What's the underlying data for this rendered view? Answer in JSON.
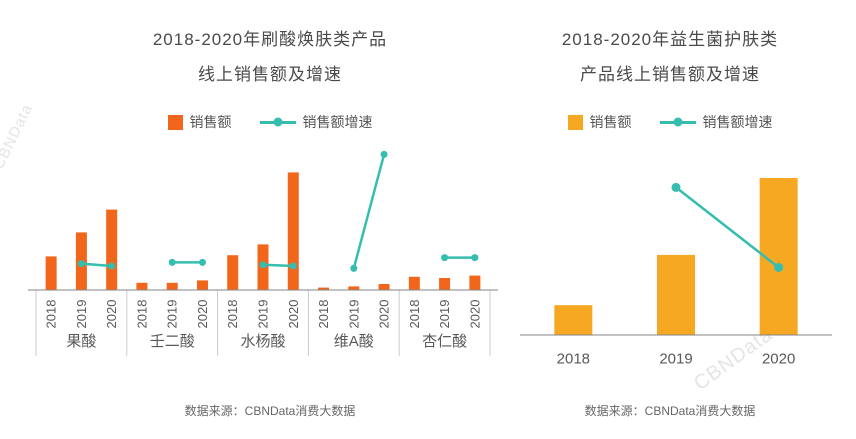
{
  "watermark": "CBNData",
  "accent_colors": {
    "acid_bar": "#F2661B",
    "probiotic_bar": "#F7A823",
    "growth_line": "#35BDAE"
  },
  "chart_data": [
    {
      "type": "bar+line",
      "title": "2018-2020年刷酸焕肤类产品线上销售额及增速",
      "title_lines": [
        "2018-2020年刷酸焕肤类产品",
        "线上销售额及增速"
      ],
      "groups": [
        "果酸",
        "壬二酸",
        "水杨酸",
        "维A酸",
        "杏仁酸"
      ],
      "years": [
        "2018",
        "2019",
        "2020"
      ],
      "bar_series": {
        "name": "销售额",
        "color": "#F2661B",
        "values": [
          [
            28,
            48,
            67
          ],
          [
            6,
            6,
            8
          ],
          [
            29,
            38,
            98
          ],
          [
            2,
            3,
            5
          ],
          [
            11,
            10,
            12
          ]
        ]
      },
      "line_series": {
        "name": "销售额增速",
        "color": "#35BDAE",
        "values": [
          [
            null,
            22,
            20
          ],
          [
            null,
            23,
            23
          ],
          [
            null,
            21,
            20
          ],
          [
            null,
            18,
            113
          ],
          [
            null,
            27,
            27
          ]
        ]
      },
      "units": "relative (no numeric axis shown; values estimated from pixel heights)",
      "legend_position": "top",
      "grid": false,
      "source": "数据来源：CBNData消费大数据"
    },
    {
      "type": "bar+line",
      "title": "2018-2020年益生菌护肤类产品线上销售额及增速",
      "title_lines": [
        "2018-2020年益生菌护肤类",
        "产品线上销售额及增速"
      ],
      "groups": null,
      "years": [
        "2018",
        "2019",
        "2020"
      ],
      "bar_series": {
        "name": "销售额",
        "color": "#F7A823",
        "values": [
          [
            19,
            51,
            100
          ]
        ]
      },
      "line_series": {
        "name": "销售额增速",
        "color": "#35BDAE",
        "values": [
          [
            null,
            94,
            43
          ]
        ]
      },
      "units": "relative (no numeric axis shown; values estimated from pixel heights)",
      "legend_position": "top",
      "grid": false,
      "source": "数据来源：CBNData消费大数据"
    }
  ]
}
